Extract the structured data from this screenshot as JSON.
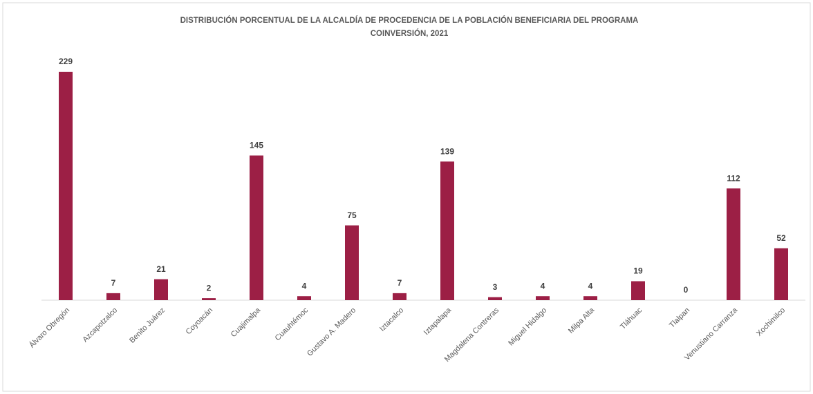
{
  "chart_data": {
    "type": "bar",
    "title": [
      "DISTRIBUCIÓN PORCENTUAL DE LA ALCALDÍA DE PROCEDENCIA DE LA POBLACIÓN BENEFICIARIA DEL PROGRAMA",
      "COINVERSIÓN, 2021"
    ],
    "categories": [
      "Álvaro Obregón",
      "Azcapotzalco",
      "Benito Juárez",
      "Coyoacán",
      "Cuajimalpa",
      "Cuauhtémoc",
      "Gustavo A. Madero",
      "Iztacalco",
      "Iztapalapa",
      "Magdalena Contreras",
      "Miguel Hidalgo",
      "Milpa Alta",
      "Tláhuac",
      "Tlalpan",
      "Venustiano Carranza",
      "Xochimilco"
    ],
    "values": [
      229,
      7,
      21,
      2,
      145,
      4,
      75,
      7,
      139,
      3,
      4,
      4,
      19,
      0,
      112,
      52
    ],
    "color": "#9c1f45"
  }
}
